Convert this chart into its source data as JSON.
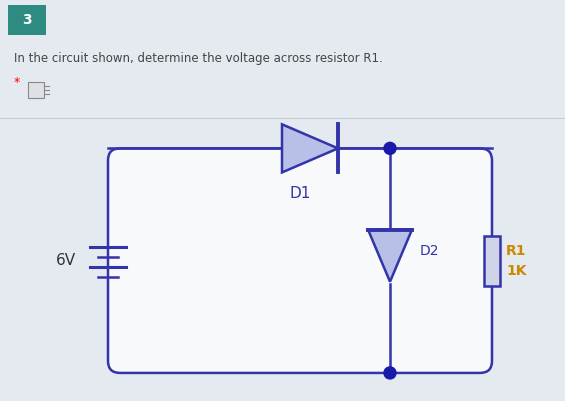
{
  "bg_color": "#e4eaf0",
  "circuit_bg": "#f8f9fb",
  "circuit_color": "#3333aa",
  "diode_fill": "#b8c0e8",
  "dot_color": "#1a1aaa",
  "text_color": "#555555",
  "label_color": "#3333aa",
  "teal_bg": "#2d8b82",
  "question_num": "3",
  "question_text": "In the circuit shown, determine the voltage across resistor R1.",
  "voltage_label": "6V",
  "d1_label": "D1",
  "d2_label": "D2",
  "r1_label": "R1",
  "r1_val": "1K",
  "fig_width": 5.65,
  "fig_height": 4.01
}
